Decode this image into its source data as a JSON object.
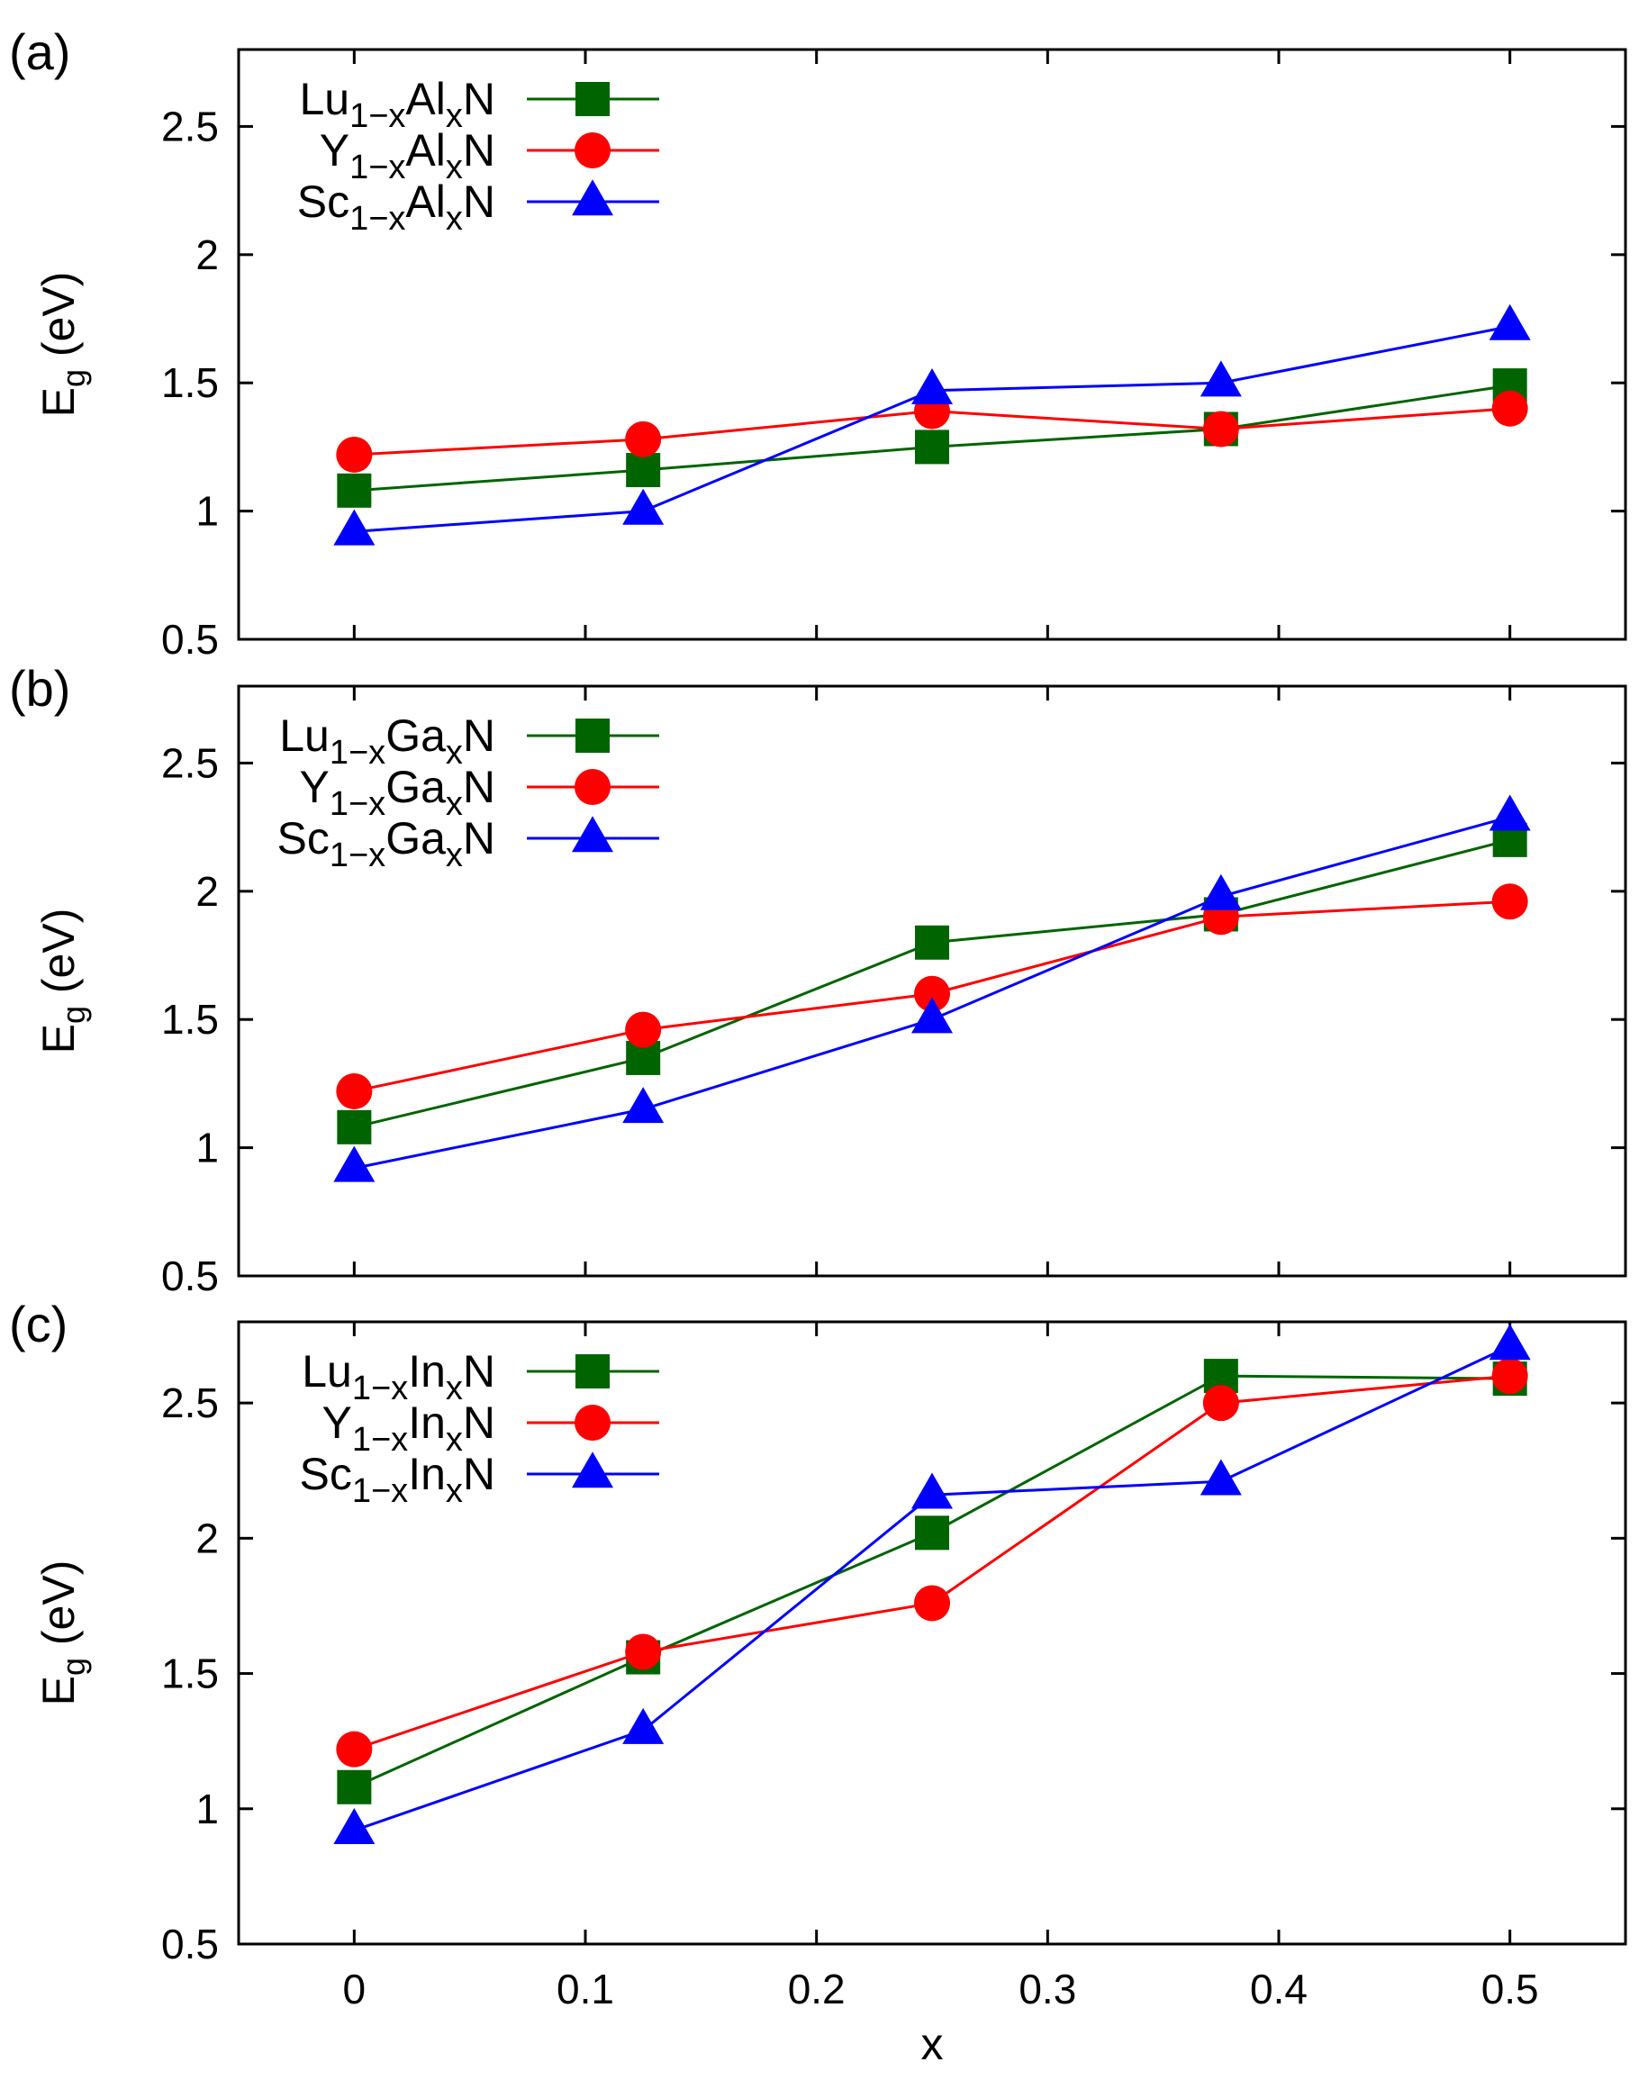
{
  "chart_data": [
    {
      "type": "line",
      "panel_label": "(a)",
      "xlabel": "",
      "ylabel": "E_g (eV)",
      "xlim": [
        -0.05,
        0.55
      ],
      "ylim": [
        0.5,
        2.8
      ],
      "xticks": [
        "0",
        "0.1",
        "0.2",
        "0.3",
        "0.4",
        "0.5"
      ],
      "yticks": [
        "0.5",
        "1",
        "1.5",
        "2",
        "2.5"
      ],
      "legend_position": "top-left",
      "x": [
        0,
        0.125,
        0.25,
        0.375,
        0.5
      ],
      "series": [
        {
          "name": "Lu1−xAlxN",
          "name_parts": [
            "Lu",
            "1−x",
            "Al",
            "x",
            "N"
          ],
          "color": "#006400",
          "marker": "square",
          "values": [
            1.08,
            1.16,
            1.25,
            1.32,
            1.49
          ]
        },
        {
          "name": "Y1−xAlxN",
          "name_parts": [
            "Y",
            "1−x",
            "Al",
            "x",
            "N"
          ],
          "color": "#ff0000",
          "marker": "circle",
          "values": [
            1.22,
            1.28,
            1.39,
            1.32,
            1.4
          ]
        },
        {
          "name": "Sc1−xAlxN",
          "name_parts": [
            "Sc",
            "1−x",
            "Al",
            "x",
            "N"
          ],
          "color": "#0000ff",
          "marker": "triangle",
          "values": [
            0.92,
            1.0,
            1.47,
            1.5,
            1.72
          ]
        }
      ]
    },
    {
      "type": "line",
      "panel_label": "(b)",
      "xlabel": "",
      "ylabel": "E_g (eV)",
      "xlim": [
        -0.05,
        0.55
      ],
      "ylim": [
        0.5,
        2.8
      ],
      "xticks": [
        "0",
        "0.1",
        "0.2",
        "0.3",
        "0.4",
        "0.5"
      ],
      "yticks": [
        "0.5",
        "1",
        "1.5",
        "2",
        "2.5"
      ],
      "legend_position": "top-left",
      "x": [
        0,
        0.125,
        0.25,
        0.375,
        0.5
      ],
      "series": [
        {
          "name": "Lu1−xGaxN",
          "name_parts": [
            "Lu",
            "1−x",
            "Ga",
            "x",
            "N"
          ],
          "color": "#006400",
          "marker": "square",
          "values": [
            1.08,
            1.35,
            1.8,
            1.91,
            2.2
          ]
        },
        {
          "name": "Y1−xGaxN",
          "name_parts": [
            "Y",
            "1−x",
            "Ga",
            "x",
            "N"
          ],
          "color": "#ff0000",
          "marker": "circle",
          "values": [
            1.22,
            1.46,
            1.6,
            1.9,
            1.96
          ]
        },
        {
          "name": "Sc1−xGaxN",
          "name_parts": [
            "Sc",
            "1−x",
            "Ga",
            "x",
            "N"
          ],
          "color": "#0000ff",
          "marker": "triangle",
          "values": [
            0.92,
            1.15,
            1.5,
            1.98,
            2.29
          ]
        }
      ]
    },
    {
      "type": "line",
      "panel_label": "(c)",
      "xlabel": "x",
      "ylabel": "E_g (eV)",
      "xlim": [
        -0.05,
        0.55
      ],
      "ylim": [
        0.5,
        2.8
      ],
      "xticks": [
        "0",
        "0.1",
        "0.2",
        "0.3",
        "0.4",
        "0.5"
      ],
      "yticks": [
        "0.5",
        "1",
        "1.5",
        "2",
        "2.5"
      ],
      "legend_position": "top-left",
      "x": [
        0,
        0.125,
        0.25,
        0.375,
        0.5
      ],
      "series": [
        {
          "name": "Lu1−xInxN",
          "name_parts": [
            "Lu",
            "1−x",
            "In",
            "x",
            "N"
          ],
          "color": "#006400",
          "marker": "square",
          "values": [
            1.08,
            1.56,
            2.02,
            2.6,
            2.59
          ]
        },
        {
          "name": "Y1−xInxN",
          "name_parts": [
            "Y",
            "1−x",
            "In",
            "x",
            "N"
          ],
          "color": "#ff0000",
          "marker": "circle",
          "values": [
            1.22,
            1.58,
            1.76,
            2.5,
            2.6
          ]
        },
        {
          "name": "Sc1−xInxN",
          "name_parts": [
            "Sc",
            "1−x",
            "In",
            "x",
            "N"
          ],
          "color": "#0000ff",
          "marker": "triangle",
          "values": [
            0.92,
            1.29,
            2.16,
            2.21,
            2.71
          ]
        }
      ]
    }
  ]
}
